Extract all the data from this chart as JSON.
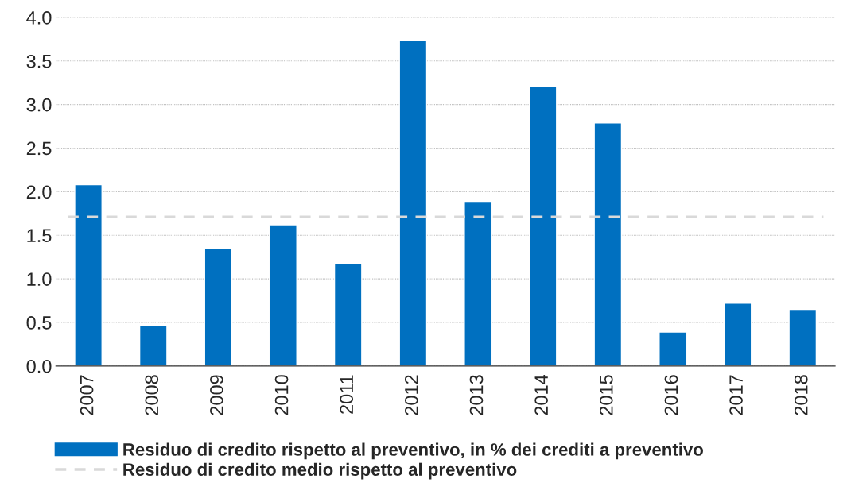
{
  "chart_data": {
    "type": "bar",
    "categories": [
      "2007",
      "2008",
      "2009",
      "2010",
      "2011",
      "2012",
      "2013",
      "2014",
      "2015",
      "2016",
      "2017",
      "2018"
    ],
    "series": [
      {
        "name": "Residuo di credito rispetto al preventivo, in % dei crediti a preventivo",
        "color": "#0070c0",
        "values": [
          2.08,
          0.46,
          1.35,
          1.62,
          1.18,
          3.74,
          1.89,
          3.21,
          2.79,
          0.39,
          0.72,
          0.65
        ]
      }
    ],
    "ref_lines": [
      {
        "axis": "y",
        "value": 1.71,
        "label": "Residuo di credito medio rispetto al preventivo",
        "color": "#d9d9d9",
        "line_style": "dashed"
      }
    ],
    "ylim": [
      0,
      4.0
    ],
    "yticks": [
      {
        "value": 0,
        "label": "0.0"
      },
      {
        "value": 0.5,
        "label": "0.5"
      },
      {
        "value": 1.0,
        "label": "1.0"
      },
      {
        "value": 1.5,
        "label": "1.5"
      },
      {
        "value": 2.0,
        "label": "2.0"
      },
      {
        "value": 2.5,
        "label": "2.5"
      },
      {
        "value": 3.0,
        "label": "3.0"
      },
      {
        "value": 3.5,
        "label": "3.5"
      },
      {
        "value": 4.0,
        "label": "4.0"
      }
    ],
    "grid": "y",
    "legend": "bottom"
  }
}
